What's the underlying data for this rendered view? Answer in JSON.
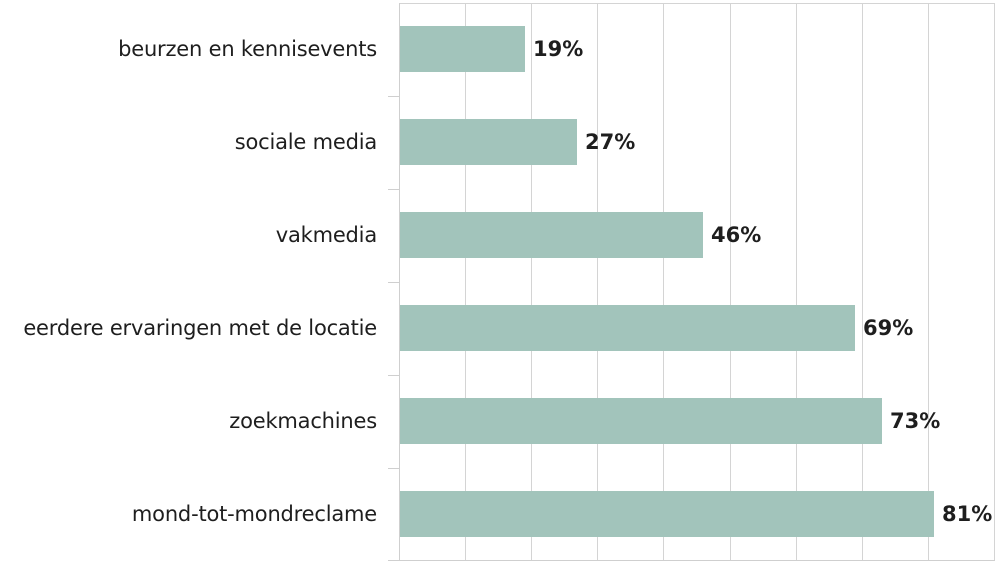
{
  "chart_data": {
    "type": "bar",
    "orientation": "horizontal",
    "title": "",
    "xlabel": "",
    "ylabel": "",
    "categories": [
      "beurzen en kennisevents",
      "sociale media",
      "vakmedia",
      "eerdere ervaringen met de locatie",
      "zoekmachines",
      "mond-tot-mondreclame"
    ],
    "values": [
      19,
      27,
      46,
      69,
      73,
      81
    ],
    "value_labels": [
      "19%",
      "27%",
      "46%",
      "69%",
      "73%",
      "81%"
    ],
    "unit": "%",
    "xlim": [
      0,
      90
    ],
    "x_gridlines": [
      0,
      10,
      20,
      30,
      40,
      50,
      60,
      70,
      80,
      90
    ],
    "grid": true,
    "legend": null,
    "bar_color": "#a2c4bb"
  },
  "colors": {
    "bar": "#a2c4bb",
    "grid": "#d4d4d4",
    "text": "#1e1e1e",
    "background": "#ffffff"
  }
}
